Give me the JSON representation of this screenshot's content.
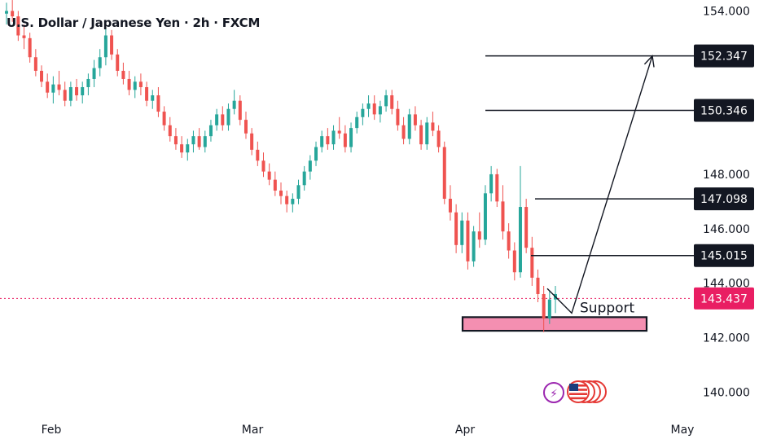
{
  "chart_data": {
    "type": "candlestick",
    "title": "U.S. Dollar / Japanese Yen · 2h · FXCM",
    "ylim": [
      139.5,
      155.0
    ],
    "y_ticks": [
      "140.000",
      "142.000",
      "144.000",
      "146.000",
      "148.000",
      "154.000"
    ],
    "x_ticks": [
      "Feb",
      "Mar",
      "Apr",
      "May"
    ],
    "current_price": {
      "label": "143.437",
      "value": 143.437,
      "color": "#e91e63"
    },
    "levels": [
      {
        "label": "152.347",
        "value": 152.347
      },
      {
        "label": "150.346",
        "value": 150.346
      },
      {
        "label": "147.098",
        "value": 147.098
      },
      {
        "label": "145.015",
        "value": 145.015
      }
    ],
    "support": {
      "label": "Support",
      "low": 142.25,
      "high": 142.75,
      "color": "#f48fb1"
    },
    "projection": [
      {
        "date": "Apr 11",
        "price": 143.8
      },
      {
        "date": "Apr 16",
        "price": 142.9
      },
      {
        "date": "Apr 28",
        "price": 152.347
      }
    ],
    "colors": {
      "up": "#26a69a",
      "down": "#ef5350",
      "wick": "#555555",
      "level_box": "#131722"
    },
    "series": [
      {
        "values": [
          [
            153.9,
            154.3,
            153.5,
            154.0
          ],
          [
            154.0,
            154.4,
            153.6,
            153.8
          ],
          [
            153.8,
            154.0,
            152.9,
            153.1
          ],
          [
            153.1,
            153.5,
            152.6,
            153.0
          ],
          [
            153.0,
            153.2,
            152.1,
            152.3
          ],
          [
            152.3,
            152.6,
            151.6,
            151.8
          ],
          [
            151.8,
            152.0,
            151.2,
            151.4
          ],
          [
            151.4,
            151.7,
            150.8,
            151.0
          ],
          [
            151.0,
            151.6,
            150.6,
            151.3
          ],
          [
            151.3,
            151.8,
            150.9,
            151.1
          ],
          [
            151.1,
            151.4,
            150.5,
            150.7
          ],
          [
            150.7,
            151.4,
            150.5,
            151.2
          ],
          [
            151.2,
            151.5,
            150.7,
            150.9
          ],
          [
            150.9,
            151.4,
            150.6,
            151.2
          ],
          [
            151.2,
            151.7,
            150.9,
            151.5
          ],
          [
            151.5,
            152.2,
            151.2,
            151.9
          ],
          [
            151.9,
            152.6,
            151.6,
            152.3
          ],
          [
            152.3,
            153.4,
            152.0,
            153.1
          ],
          [
            153.1,
            153.3,
            152.2,
            152.4
          ],
          [
            152.4,
            152.6,
            151.6,
            151.8
          ],
          [
            151.8,
            152.1,
            151.3,
            151.5
          ],
          [
            151.5,
            151.8,
            150.9,
            151.1
          ],
          [
            151.1,
            151.6,
            150.8,
            151.4
          ],
          [
            151.4,
            151.7,
            150.9,
            151.2
          ],
          [
            151.2,
            151.4,
            150.5,
            150.7
          ],
          [
            150.7,
            151.1,
            150.4,
            150.9
          ],
          [
            150.9,
            151.2,
            150.1,
            150.3
          ],
          [
            150.3,
            150.5,
            149.6,
            149.8
          ],
          [
            149.8,
            150.1,
            149.2,
            149.4
          ],
          [
            149.4,
            149.7,
            148.9,
            149.1
          ],
          [
            149.1,
            149.4,
            148.6,
            148.8
          ],
          [
            148.8,
            149.3,
            148.5,
            149.1
          ],
          [
            149.1,
            149.6,
            148.8,
            149.4
          ],
          [
            149.4,
            149.7,
            148.9,
            149.0
          ],
          [
            149.0,
            149.6,
            148.8,
            149.4
          ],
          [
            149.4,
            150.0,
            149.2,
            149.8
          ],
          [
            149.8,
            150.4,
            149.6,
            150.2
          ],
          [
            150.2,
            150.5,
            149.6,
            149.8
          ],
          [
            149.8,
            150.6,
            149.6,
            150.4
          ],
          [
            150.4,
            151.1,
            150.2,
            150.7
          ],
          [
            150.7,
            150.9,
            149.8,
            150.0
          ],
          [
            150.0,
            150.3,
            149.3,
            149.5
          ],
          [
            149.5,
            149.7,
            148.7,
            148.9
          ],
          [
            148.9,
            149.2,
            148.3,
            148.5
          ],
          [
            148.5,
            148.8,
            147.9,
            148.1
          ],
          [
            148.1,
            148.4,
            147.6,
            147.8
          ],
          [
            147.8,
            148.1,
            147.2,
            147.4
          ],
          [
            147.4,
            147.7,
            146.9,
            147.2
          ],
          [
            147.2,
            147.4,
            146.6,
            146.9
          ],
          [
            146.9,
            147.3,
            146.6,
            147.1
          ],
          [
            147.1,
            147.8,
            146.9,
            147.6
          ],
          [
            147.6,
            148.3,
            147.4,
            148.1
          ],
          [
            148.1,
            148.7,
            147.8,
            148.5
          ],
          [
            148.5,
            149.2,
            148.3,
            149.0
          ],
          [
            149.0,
            149.6,
            148.8,
            149.4
          ],
          [
            149.4,
            149.7,
            148.9,
            149.1
          ],
          [
            149.1,
            149.8,
            148.9,
            149.6
          ],
          [
            149.6,
            150.1,
            149.3,
            149.5
          ],
          [
            149.5,
            149.8,
            148.8,
            149.0
          ],
          [
            149.0,
            149.9,
            148.8,
            149.7
          ],
          [
            149.7,
            150.3,
            149.5,
            150.1
          ],
          [
            150.1,
            150.6,
            149.8,
            150.4
          ],
          [
            150.4,
            150.9,
            150.1,
            150.6
          ],
          [
            150.6,
            150.9,
            150.0,
            150.2
          ],
          [
            150.2,
            150.7,
            149.9,
            150.5
          ],
          [
            150.5,
            151.1,
            150.3,
            150.9
          ],
          [
            150.9,
            151.1,
            150.2,
            150.4
          ],
          [
            150.4,
            150.7,
            149.6,
            149.8
          ],
          [
            149.8,
            150.1,
            149.1,
            149.3
          ],
          [
            149.3,
            150.4,
            149.1,
            150.2
          ],
          [
            150.2,
            150.5,
            149.6,
            149.8
          ],
          [
            149.8,
            150.0,
            148.9,
            149.1
          ],
          [
            149.1,
            150.1,
            148.9,
            149.9
          ],
          [
            149.9,
            150.3,
            149.4,
            149.6
          ],
          [
            149.6,
            149.8,
            148.8,
            149.0
          ],
          [
            149.0,
            149.2,
            146.9,
            147.1
          ],
          [
            147.1,
            147.6,
            146.3,
            146.6
          ],
          [
            146.6,
            146.9,
            145.1,
            145.4
          ],
          [
            145.4,
            146.6,
            145.1,
            146.3
          ],
          [
            146.3,
            146.6,
            144.5,
            144.8
          ],
          [
            144.8,
            146.1,
            144.6,
            145.9
          ],
          [
            145.9,
            146.6,
            145.3,
            145.6
          ],
          [
            145.6,
            147.6,
            145.4,
            147.3
          ],
          [
            147.3,
            148.3,
            147.0,
            148.0
          ],
          [
            148.0,
            148.2,
            146.8,
            147.0
          ],
          [
            147.0,
            147.6,
            145.6,
            145.9
          ],
          [
            145.9,
            146.2,
            144.9,
            145.2
          ],
          [
            145.2,
            145.5,
            144.1,
            144.4
          ],
          [
            144.4,
            148.3,
            144.2,
            146.8
          ],
          [
            146.8,
            147.1,
            145.1,
            145.3
          ],
          [
            145.3,
            145.7,
            143.9,
            144.2
          ],
          [
            144.2,
            144.5,
            143.3,
            143.6
          ],
          [
            143.6,
            143.9,
            142.2,
            142.7
          ],
          [
            142.7,
            143.7,
            142.5,
            143.4
          ],
          [
            143.4,
            143.9,
            142.9,
            143.6
          ]
        ]
      }
    ]
  },
  "badges": {
    "flash": {
      "glyph": "⚡",
      "color": "#9c27b0"
    },
    "flag": {
      "name": "us-flag-icon",
      "color": "#e53935"
    }
  }
}
